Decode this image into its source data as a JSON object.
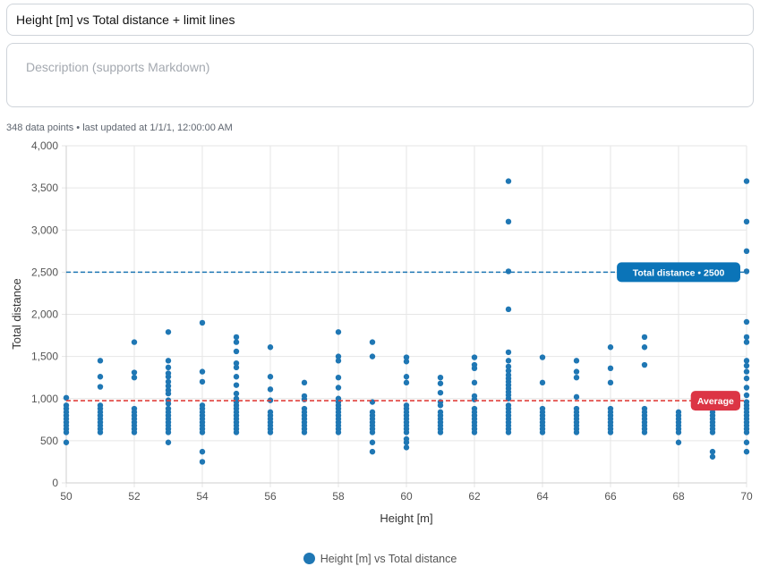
{
  "header": {
    "title_value": "Height [m] vs Total distance + limit lines",
    "description_placeholder": "Description (supports Markdown)"
  },
  "meta": {
    "status": "348 data points • last updated at 1/1/1, 12:00:00 AM"
  },
  "legend": {
    "label": "Height [m] vs Total distance"
  },
  "chart_data": {
    "type": "scatter",
    "xlabel": "Height [m]",
    "ylabel": "Total distance",
    "xlim": [
      50,
      70
    ],
    "ylim": [
      0,
      4000
    ],
    "x_ticks": [
      "50",
      "52",
      "54",
      "56",
      "58",
      "60",
      "62",
      "64",
      "66",
      "68",
      "70"
    ],
    "y_ticks": [
      "0",
      "500",
      "1,000",
      "1,500",
      "2,000",
      "2,500",
      "3,000",
      "3,500",
      "4,000"
    ],
    "grid": true,
    "legend_position": "bottom",
    "series": [
      {
        "name": "Height [m] vs Total distance",
        "color": "#1f77b4",
        "points": [
          [
            50,
            480
          ],
          [
            50,
            600
          ],
          [
            50,
            640
          ],
          [
            50,
            680
          ],
          [
            50,
            720
          ],
          [
            50,
            760
          ],
          [
            50,
            800
          ],
          [
            50,
            840
          ],
          [
            50,
            880
          ],
          [
            50,
            920
          ],
          [
            50,
            1010
          ],
          [
            51,
            600
          ],
          [
            51,
            640
          ],
          [
            51,
            680
          ],
          [
            51,
            720
          ],
          [
            51,
            760
          ],
          [
            51,
            800
          ],
          [
            51,
            840
          ],
          [
            51,
            880
          ],
          [
            51,
            920
          ],
          [
            51,
            1140
          ],
          [
            51,
            1260
          ],
          [
            51,
            1450
          ],
          [
            52,
            600
          ],
          [
            52,
            640
          ],
          [
            52,
            680
          ],
          [
            52,
            720
          ],
          [
            52,
            760
          ],
          [
            52,
            800
          ],
          [
            52,
            840
          ],
          [
            52,
            880
          ],
          [
            52,
            1250
          ],
          [
            52,
            1310
          ],
          [
            52,
            1670
          ],
          [
            53,
            480
          ],
          [
            53,
            600
          ],
          [
            53,
            640
          ],
          [
            53,
            680
          ],
          [
            53,
            720
          ],
          [
            53,
            760
          ],
          [
            53,
            800
          ],
          [
            53,
            840
          ],
          [
            53,
            880
          ],
          [
            53,
            940
          ],
          [
            53,
            980
          ],
          [
            53,
            1060
          ],
          [
            53,
            1100
          ],
          [
            53,
            1150
          ],
          [
            53,
            1200
          ],
          [
            53,
            1260
          ],
          [
            53,
            1300
          ],
          [
            53,
            1370
          ],
          [
            53,
            1450
          ],
          [
            53,
            1790
          ],
          [
            54,
            250
          ],
          [
            54,
            370
          ],
          [
            54,
            600
          ],
          [
            54,
            640
          ],
          [
            54,
            680
          ],
          [
            54,
            720
          ],
          [
            54,
            760
          ],
          [
            54,
            800
          ],
          [
            54,
            840
          ],
          [
            54,
            880
          ],
          [
            54,
            920
          ],
          [
            54,
            1200
          ],
          [
            54,
            1320
          ],
          [
            54,
            1900
          ],
          [
            55,
            600
          ],
          [
            55,
            640
          ],
          [
            55,
            680
          ],
          [
            55,
            720
          ],
          [
            55,
            760
          ],
          [
            55,
            800
          ],
          [
            55,
            840
          ],
          [
            55,
            880
          ],
          [
            55,
            920
          ],
          [
            55,
            960
          ],
          [
            55,
            1000
          ],
          [
            55,
            1060
          ],
          [
            55,
            1160
          ],
          [
            55,
            1260
          ],
          [
            55,
            1370
          ],
          [
            55,
            1420
          ],
          [
            55,
            1560
          ],
          [
            55,
            1670
          ],
          [
            55,
            1730
          ],
          [
            56,
            600
          ],
          [
            56,
            640
          ],
          [
            56,
            680
          ],
          [
            56,
            720
          ],
          [
            56,
            760
          ],
          [
            56,
            800
          ],
          [
            56,
            840
          ],
          [
            56,
            980
          ],
          [
            56,
            1110
          ],
          [
            56,
            1260
          ],
          [
            56,
            1610
          ],
          [
            57,
            600
          ],
          [
            57,
            640
          ],
          [
            57,
            680
          ],
          [
            57,
            720
          ],
          [
            57,
            760
          ],
          [
            57,
            800
          ],
          [
            57,
            840
          ],
          [
            57,
            880
          ],
          [
            57,
            990
          ],
          [
            57,
            1030
          ],
          [
            57,
            1190
          ],
          [
            58,
            600
          ],
          [
            58,
            640
          ],
          [
            58,
            680
          ],
          [
            58,
            720
          ],
          [
            58,
            760
          ],
          [
            58,
            800
          ],
          [
            58,
            840
          ],
          [
            58,
            880
          ],
          [
            58,
            920
          ],
          [
            58,
            960
          ],
          [
            58,
            1000
          ],
          [
            58,
            1130
          ],
          [
            58,
            1250
          ],
          [
            58,
            1450
          ],
          [
            58,
            1500
          ],
          [
            58,
            1790
          ],
          [
            59,
            370
          ],
          [
            59,
            480
          ],
          [
            59,
            600
          ],
          [
            59,
            640
          ],
          [
            59,
            680
          ],
          [
            59,
            720
          ],
          [
            59,
            760
          ],
          [
            59,
            800
          ],
          [
            59,
            840
          ],
          [
            59,
            960
          ],
          [
            59,
            1500
          ],
          [
            59,
            1670
          ],
          [
            60,
            420
          ],
          [
            60,
            480
          ],
          [
            60,
            520
          ],
          [
            60,
            600
          ],
          [
            60,
            640
          ],
          [
            60,
            680
          ],
          [
            60,
            720
          ],
          [
            60,
            760
          ],
          [
            60,
            800
          ],
          [
            60,
            840
          ],
          [
            60,
            880
          ],
          [
            60,
            920
          ],
          [
            60,
            1190
          ],
          [
            60,
            1260
          ],
          [
            60,
            1440
          ],
          [
            60,
            1490
          ],
          [
            61,
            600
          ],
          [
            61,
            640
          ],
          [
            61,
            680
          ],
          [
            61,
            720
          ],
          [
            61,
            760
          ],
          [
            61,
            800
          ],
          [
            61,
            840
          ],
          [
            61,
            920
          ],
          [
            61,
            960
          ],
          [
            61,
            1070
          ],
          [
            61,
            1180
          ],
          [
            61,
            1250
          ],
          [
            62,
            600
          ],
          [
            62,
            640
          ],
          [
            62,
            680
          ],
          [
            62,
            720
          ],
          [
            62,
            760
          ],
          [
            62,
            800
          ],
          [
            62,
            840
          ],
          [
            62,
            880
          ],
          [
            62,
            990
          ],
          [
            62,
            1030
          ],
          [
            62,
            1190
          ],
          [
            62,
            1360
          ],
          [
            62,
            1400
          ],
          [
            62,
            1490
          ],
          [
            63,
            600
          ],
          [
            63,
            640
          ],
          [
            63,
            680
          ],
          [
            63,
            720
          ],
          [
            63,
            760
          ],
          [
            63,
            800
          ],
          [
            63,
            840
          ],
          [
            63,
            880
          ],
          [
            63,
            920
          ],
          [
            63,
            1000
          ],
          [
            63,
            1040
          ],
          [
            63,
            1080
          ],
          [
            63,
            1120
          ],
          [
            63,
            1160
          ],
          [
            63,
            1200
          ],
          [
            63,
            1240
          ],
          [
            63,
            1280
          ],
          [
            63,
            1330
          ],
          [
            63,
            1380
          ],
          [
            63,
            1450
          ],
          [
            63,
            1550
          ],
          [
            63,
            2060
          ],
          [
            63,
            2510
          ],
          [
            63,
            3100
          ],
          [
            63,
            3580
          ],
          [
            64,
            600
          ],
          [
            64,
            640
          ],
          [
            64,
            680
          ],
          [
            64,
            720
          ],
          [
            64,
            760
          ],
          [
            64,
            800
          ],
          [
            64,
            840
          ],
          [
            64,
            880
          ],
          [
            64,
            1190
          ],
          [
            64,
            1490
          ],
          [
            65,
            600
          ],
          [
            65,
            640
          ],
          [
            65,
            680
          ],
          [
            65,
            720
          ],
          [
            65,
            760
          ],
          [
            65,
            800
          ],
          [
            65,
            840
          ],
          [
            65,
            880
          ],
          [
            65,
            1020
          ],
          [
            65,
            1250
          ],
          [
            65,
            1320
          ],
          [
            65,
            1450
          ],
          [
            66,
            600
          ],
          [
            66,
            640
          ],
          [
            66,
            680
          ],
          [
            66,
            720
          ],
          [
            66,
            760
          ],
          [
            66,
            800
          ],
          [
            66,
            840
          ],
          [
            66,
            880
          ],
          [
            66,
            1190
          ],
          [
            66,
            1360
          ],
          [
            66,
            1610
          ],
          [
            67,
            600
          ],
          [
            67,
            640
          ],
          [
            67,
            680
          ],
          [
            67,
            720
          ],
          [
            67,
            760
          ],
          [
            67,
            800
          ],
          [
            67,
            840
          ],
          [
            67,
            880
          ],
          [
            67,
            1400
          ],
          [
            67,
            1610
          ],
          [
            67,
            1730
          ],
          [
            68,
            480
          ],
          [
            68,
            600
          ],
          [
            68,
            640
          ],
          [
            68,
            680
          ],
          [
            68,
            720
          ],
          [
            68,
            760
          ],
          [
            68,
            800
          ],
          [
            68,
            840
          ],
          [
            69,
            310
          ],
          [
            69,
            370
          ],
          [
            69,
            600
          ],
          [
            69,
            640
          ],
          [
            69,
            680
          ],
          [
            69,
            720
          ],
          [
            69,
            760
          ],
          [
            69,
            800
          ],
          [
            69,
            840
          ],
          [
            69,
            880
          ],
          [
            69,
            920
          ],
          [
            70,
            370
          ],
          [
            70,
            480
          ],
          [
            70,
            600
          ],
          [
            70,
            640
          ],
          [
            70,
            680
          ],
          [
            70,
            720
          ],
          [
            70,
            760
          ],
          [
            70,
            800
          ],
          [
            70,
            840
          ],
          [
            70,
            880
          ],
          [
            70,
            920
          ],
          [
            70,
            960
          ],
          [
            70,
            1040
          ],
          [
            70,
            1130
          ],
          [
            70,
            1240
          ],
          [
            70,
            1320
          ],
          [
            70,
            1390
          ],
          [
            70,
            1450
          ],
          [
            70,
            1670
          ],
          [
            70,
            1730
          ],
          [
            70,
            1910
          ],
          [
            70,
            2510
          ],
          [
            70,
            2750
          ],
          [
            70,
            3100
          ],
          [
            70,
            3580
          ]
        ]
      }
    ],
    "limit_lines": [
      {
        "label": "Total distance • 2500",
        "value": 2500,
        "color": "#1f77b4",
        "badge_color": "#0b74b8"
      },
      {
        "label": "Average",
        "value": 975,
        "color": "#e0413c",
        "badge_color": "#dc3545"
      }
    ]
  }
}
